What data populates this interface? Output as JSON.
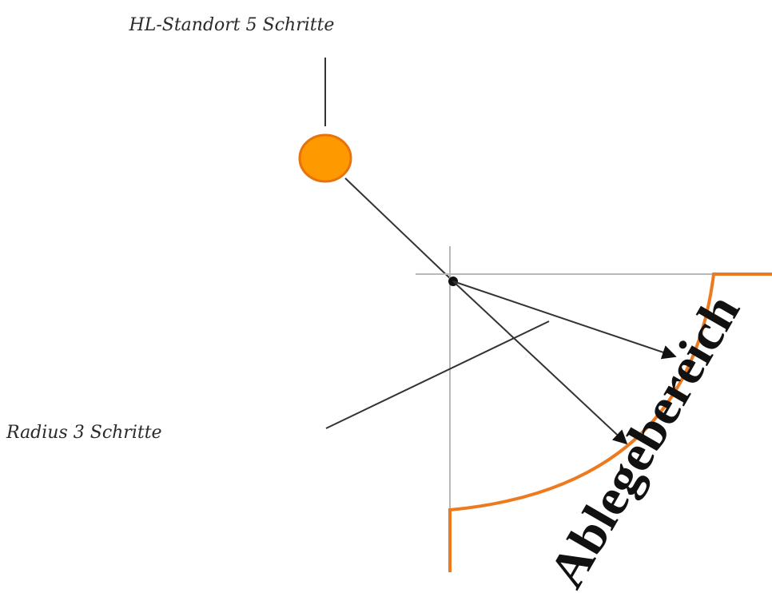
{
  "labels": {
    "position": "HL-Standort 5 Schritte",
    "radius": "Radius 3 Schritte",
    "zone": "Ablegebereich"
  },
  "colors": {
    "marker_fill": "#FF9900",
    "marker_stroke": "#E8730A",
    "zone_boundary": "#EE7A1F",
    "lines": "#333333",
    "axes": "#B8B8B8"
  }
}
